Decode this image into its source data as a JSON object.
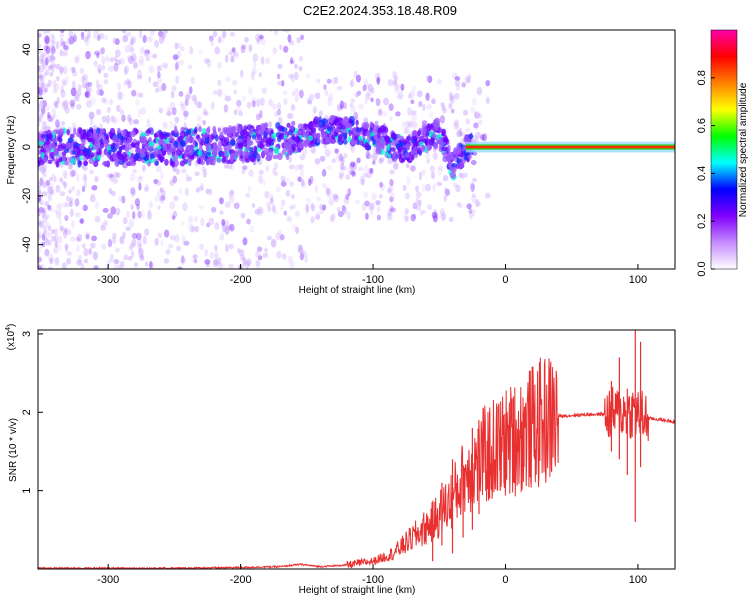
{
  "title": "C2E2.2024.353.18.48.R09",
  "chart_data": [
    {
      "type": "heatmap",
      "title": "C2E2.2024.353.18.48.R09",
      "xlabel": "Height of straight line (km)",
      "ylabel": "Frequency (Hz)",
      "xlim": [
        -353,
        128
      ],
      "ylim": [
        -50,
        48
      ],
      "xticks": [
        "-300",
        "-200",
        "-100",
        "0",
        "100"
      ],
      "yticks": [
        "-40",
        "-20",
        "0",
        "20",
        "40"
      ],
      "colorbar": {
        "label": "Normalized spectral amplitude",
        "range": [
          0.0,
          1.0
        ],
        "ticks": [
          "0.0",
          "0.2",
          "0.4",
          "0.6",
          "0.8"
        ],
        "colors": [
          "#ffffff",
          "#c58bff",
          "#8000ff",
          "#0000ff",
          "#00ffff",
          "#00ff00",
          "#ffff00",
          "#ff8000",
          "#ff0000",
          "#ff00aa"
        ]
      },
      "ridge": [
        {
          "x": -350,
          "f": 0
        },
        {
          "x": -300,
          "f": 0
        },
        {
          "x": -250,
          "f": 0
        },
        {
          "x": -200,
          "f": 1
        },
        {
          "x": -160,
          "f": 3
        },
        {
          "x": -140,
          "f": 7
        },
        {
          "x": -120,
          "f": 7
        },
        {
          "x": -105,
          "f": 5
        },
        {
          "x": -90,
          "f": 2
        },
        {
          "x": -75,
          "f": -2
        },
        {
          "x": -60,
          "f": 4
        },
        {
          "x": -50,
          "f": 6
        },
        {
          "x": -40,
          "f": -8
        },
        {
          "x": -30,
          "f": 0
        },
        {
          "x": 0,
          "f": 0
        },
        {
          "x": 128,
          "f": 0
        }
      ],
      "trace_0": {
        "x_start": -30,
        "x_end": 128,
        "f": 0
      }
    },
    {
      "type": "line",
      "xlabel": "Height of straight line (km)",
      "ylabel": "SNR (10 * v/v)",
      "multiplier": "(x10",
      "multiplier_exponent": "4",
      "xlim": [
        -353,
        128
      ],
      "ylim": [
        0,
        3.05
      ],
      "xticks": [
        "-300",
        "-200",
        "-100",
        "0",
        "100"
      ],
      "yticks": [
        "1",
        "2",
        "3"
      ],
      "series": [
        {
          "color": "#e83030",
          "x": [
            -353,
            -300,
            -250,
            -200,
            -170,
            -155,
            -140,
            -120,
            -100,
            -85,
            -70,
            -55,
            -40,
            -30,
            -20,
            -10,
            0,
            10,
            20,
            30,
            40,
            60,
            80,
            95,
            100,
            105,
            110,
            128
          ],
          "y": [
            0.01,
            0.01,
            0.01,
            0.02,
            0.03,
            0.06,
            0.03,
            0.05,
            0.1,
            0.2,
            0.4,
            0.6,
            0.9,
            1.2,
            1.4,
            1.5,
            1.6,
            1.7,
            1.8,
            1.9,
            1.95,
            1.97,
            1.98,
            2.0,
            2.0,
            1.93,
            1.92,
            1.88
          ]
        }
      ],
      "spikes": [
        {
          "x": -55,
          "lo": 0.1,
          "hi": 0.85
        },
        {
          "x": -48,
          "lo": 0.3,
          "hi": 1.1
        },
        {
          "x": -40,
          "lo": 0.2,
          "hi": 1.4
        },
        {
          "x": -32,
          "lo": 0.4,
          "hi": 1.2
        },
        {
          "x": -25,
          "lo": 0.5,
          "hi": 1.8
        },
        {
          "x": -20,
          "lo": 0.7,
          "hi": 1.6
        },
        {
          "x": -12,
          "lo": 0.9,
          "hi": 2.0
        },
        {
          "x": -4,
          "lo": 1.0,
          "hi": 1.8
        },
        {
          "x": 6,
          "lo": 1.1,
          "hi": 2.2
        },
        {
          "x": 14,
          "lo": 1.3,
          "hi": 2.0
        },
        {
          "x": 22,
          "lo": 1.4,
          "hi": 2.1
        },
        {
          "x": 80,
          "lo": 1.5,
          "hi": 2.4
        },
        {
          "x": 86,
          "lo": 1.4,
          "hi": 2.7
        },
        {
          "x": 92,
          "lo": 1.2,
          "hi": 2.3
        },
        {
          "x": 98,
          "lo": 0.6,
          "hi": 3.05
        },
        {
          "x": 102,
          "lo": 1.3,
          "hi": 2.9
        }
      ]
    }
  ]
}
